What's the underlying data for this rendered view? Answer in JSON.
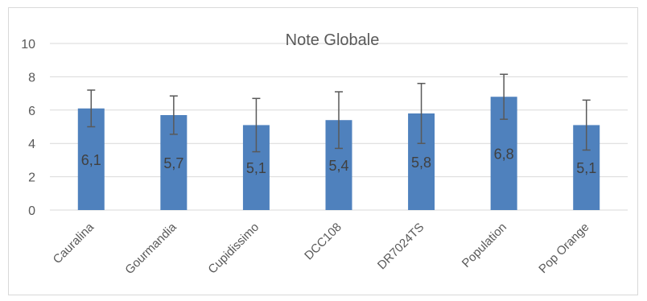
{
  "chart_data": {
    "type": "bar",
    "title": "Note Globale",
    "categories": [
      "Cauralina",
      "Gourmandia",
      "Cupidissimo",
      "DCC108",
      "DR7024TS",
      "Population",
      "Pop Orange"
    ],
    "values": [
      6.1,
      5.7,
      5.1,
      5.4,
      5.8,
      6.8,
      5.1
    ],
    "value_labels": [
      "6,1",
      "5,7",
      "5,1",
      "5,4",
      "5,8",
      "6,8",
      "5,1"
    ],
    "error_bars": [
      1.1,
      1.15,
      1.6,
      1.7,
      1.8,
      1.35,
      1.5
    ],
    "ylim": [
      0,
      10
    ],
    "yticks": [
      0,
      2,
      4,
      6,
      8,
      10
    ],
    "ytick_labels": [
      "0",
      "2",
      "4",
      "6",
      "8",
      "10"
    ],
    "xlabel": "",
    "ylabel": "",
    "grid": true,
    "legend": "none",
    "colors": {
      "bar": "#4f81bd",
      "grid": "#d9d9d9",
      "error": "#595959",
      "text": "#595959",
      "label": "#404040"
    }
  }
}
